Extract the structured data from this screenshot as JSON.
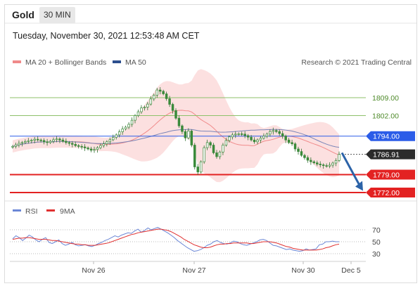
{
  "header": {
    "instrument": "Gold",
    "timeframe": "30 MIN"
  },
  "datetime": "Tuesday, November 30, 2021 12:53:48 AM CET",
  "legend": {
    "ma_boll": "MA 20 + Bollinger Bands",
    "ma50": "MA 50",
    "credit": "Research © 2021 Trading Central"
  },
  "rsi_legend": {
    "rsi": "RSI",
    "ma9": "9MA"
  },
  "colors": {
    "candle": "#3a8a3a",
    "boll": "#fbd5d5",
    "ma20": "#f08a8a",
    "ma50": "#7a85b8",
    "resistance": "#8dc16a",
    "pivot": "#2b5ce8",
    "support": "#e32222",
    "arrow": "#2c63a8",
    "rsi": "#6b87d6",
    "rsi_ma": "#e03030"
  },
  "chart_data": [
    {
      "type": "candlestick",
      "title": "Gold 30 MIN",
      "x_ticks": [
        "Nov 26",
        "Nov 27",
        "Nov 30",
        "Dec 5"
      ],
      "ylim": [
        1768,
        1816
      ],
      "levels": [
        {
          "value": 1809.0,
          "label": "1809.00",
          "kind": "resistance"
        },
        {
          "value": 1802.0,
          "label": "1802.00",
          "kind": "resistance"
        },
        {
          "value": 1794.0,
          "label": "1794.00",
          "kind": "pivot"
        },
        {
          "value": 1779.0,
          "label": "1779.00",
          "kind": "support"
        },
        {
          "value": 1772.0,
          "label": "1772.00",
          "kind": "support"
        }
      ],
      "last_price": {
        "value": 1786.91,
        "label": "1786.91"
      },
      "close": [
        1790.0,
        1790.6,
        1791.2,
        1791.5,
        1791.9,
        1792.2,
        1792.4,
        1792.8,
        1792.5,
        1792.3,
        1791.8,
        1791.5,
        1792.0,
        1792.6,
        1792.9,
        1792.5,
        1792.0,
        1791.5,
        1791.2,
        1790.8,
        1790.3,
        1790.0,
        1789.8,
        1789.4,
        1789.0,
        1788.5,
        1788.8,
        1789.5,
        1790.3,
        1791.0,
        1791.8,
        1792.6,
        1793.5,
        1794.5,
        1795.7,
        1796.8,
        1797.5,
        1798.6,
        1800.2,
        1802.0,
        1803.5,
        1805.0,
        1805.3,
        1806.5,
        1808.5,
        1810.0,
        1812.0,
        1811.5,
        1810.5,
        1808.6,
        1806.4,
        1804.0,
        1801.0,
        1798.0,
        1795.8,
        1793.3,
        1796.0,
        1790.5,
        1782.0,
        1780.0,
        1784.0,
        1789.5,
        1791.5,
        1790.5,
        1787.5,
        1786.0,
        1787.8,
        1790.5,
        1792.3,
        1793.7,
        1794.5,
        1794.8,
        1794.9,
        1794.8,
        1794.2,
        1793.6,
        1792.5,
        1791.8,
        1792.5,
        1793.2,
        1794.0,
        1794.8,
        1795.8,
        1796.2,
        1795.8,
        1795.0,
        1794.0,
        1792.5,
        1791.5,
        1791.0,
        1789.0,
        1788.0,
        1786.5,
        1785.6,
        1784.6,
        1784.0,
        1783.6,
        1783.1,
        1782.8,
        1782.5,
        1782.3,
        1782.7,
        1783.5,
        1784.5,
        1786.9
      ],
      "series": [
        {
          "name": "MA 20 + Bollinger Bands",
          "values": "20-period moving average of close with 2σ bands"
        },
        {
          "name": "MA 50",
          "values": "50-period moving average of close"
        }
      ]
    },
    {
      "type": "line",
      "title": "RSI",
      "ylim": [
        20,
        80
      ],
      "y_ticks": [
        70,
        50,
        30
      ],
      "series": [
        {
          "name": "RSI",
          "values": [
            55,
            60,
            57,
            52,
            56,
            61,
            58,
            53,
            50,
            54,
            57,
            49,
            47,
            50,
            53,
            47,
            44,
            46,
            49,
            45,
            43,
            44,
            45,
            43,
            42,
            44,
            47,
            49,
            52,
            54,
            57,
            60,
            58,
            61,
            63,
            65,
            64,
            68,
            71,
            66,
            69,
            73,
            70,
            72,
            74,
            71,
            68,
            65,
            61,
            57,
            52,
            48,
            44,
            40,
            37,
            34,
            35,
            37,
            40,
            44,
            46,
            50,
            52,
            49,
            47,
            46,
            48,
            51,
            50,
            47,
            45,
            44,
            46,
            48,
            50,
            53,
            54,
            52,
            48,
            44,
            43,
            41,
            39,
            37,
            38,
            36,
            35,
            34,
            35,
            38,
            36,
            37,
            38,
            45,
            46,
            50,
            50,
            51,
            50,
            50
          ]
        },
        {
          "name": "9MA",
          "values": [
            54,
            55,
            56,
            56,
            57,
            57,
            56,
            55,
            54,
            54,
            54,
            53,
            52,
            52,
            51,
            50,
            49,
            48,
            47,
            46,
            46,
            45,
            45,
            44,
            44,
            44,
            45,
            46,
            47,
            48,
            50,
            52,
            54,
            56,
            58,
            60,
            62,
            63,
            65,
            66,
            67,
            68,
            69,
            70,
            71,
            71,
            70,
            69,
            67,
            64,
            61,
            58,
            54,
            51,
            48,
            45,
            43,
            41,
            40,
            40,
            41,
            43,
            45,
            46,
            46,
            47,
            47,
            48,
            48,
            48,
            48,
            48,
            47,
            47,
            48,
            49,
            50,
            50,
            50,
            49,
            48,
            46,
            44,
            42,
            41,
            39,
            38,
            37,
            36,
            36,
            36,
            36,
            36,
            37,
            38,
            40,
            41,
            43,
            45,
            46
          ]
        }
      ]
    }
  ]
}
